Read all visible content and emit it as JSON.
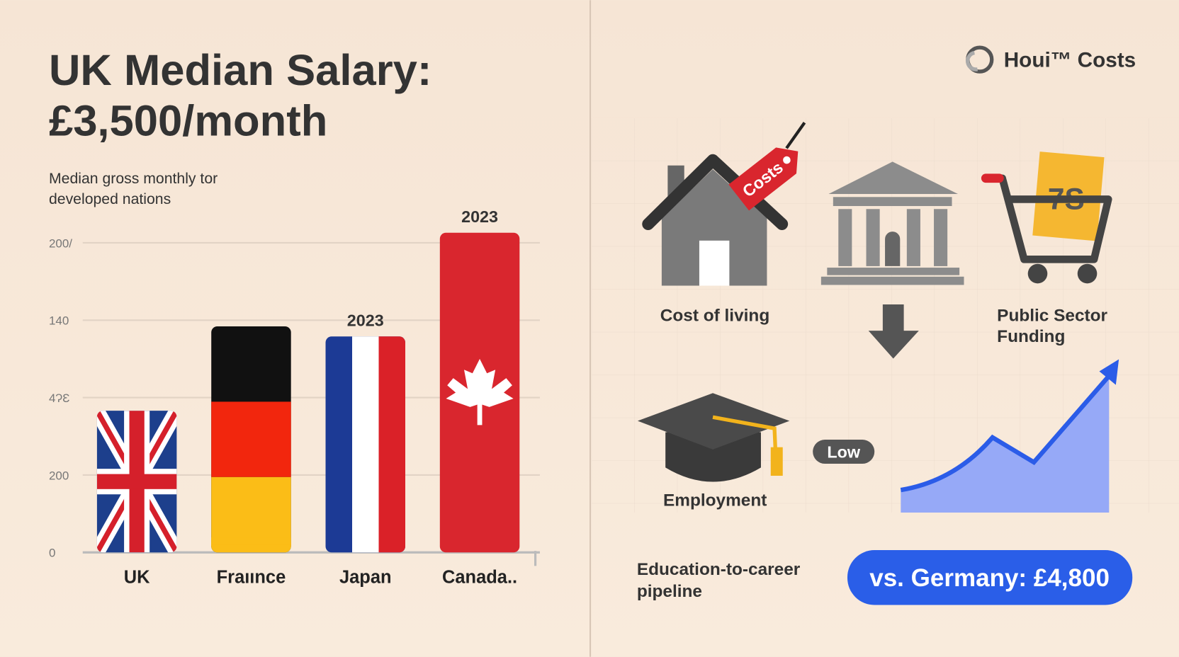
{
  "chart_data": {
    "type": "bar",
    "title": "UK Median Salary: £3,500/month",
    "subtitle": "Median gross monthly tor developed nations",
    "categories": [
      "UK",
      "Fraıınce",
      "Japan",
      "Canada.."
    ],
    "values": [
      1.83,
      2.92,
      2.79,
      4.13
    ],
    "bar_notes": [
      null,
      null,
      "2023",
      "2023"
    ],
    "ylim": [
      0,
      4.3
    ],
    "yticks": [
      {
        "value": 0,
        "label": "0"
      },
      {
        "value": 1,
        "label": "200"
      },
      {
        "value": 2,
        "label": "4ɁƐ"
      },
      {
        "value": 3,
        "label": "140"
      },
      {
        "value": 4,
        "label": "200/"
      }
    ],
    "grid": true
  },
  "panel": {
    "logo": "Houi™ Costs",
    "tag": "Costs",
    "calendar": "7S",
    "labels": {
      "cost_of_living": "Cost of living",
      "public_sector": "Public Sector Funding",
      "low": "Low",
      "employment": "Employment",
      "pipeline": "Education-to-career pipeline"
    },
    "button": "vs. Germany: £4,800"
  }
}
